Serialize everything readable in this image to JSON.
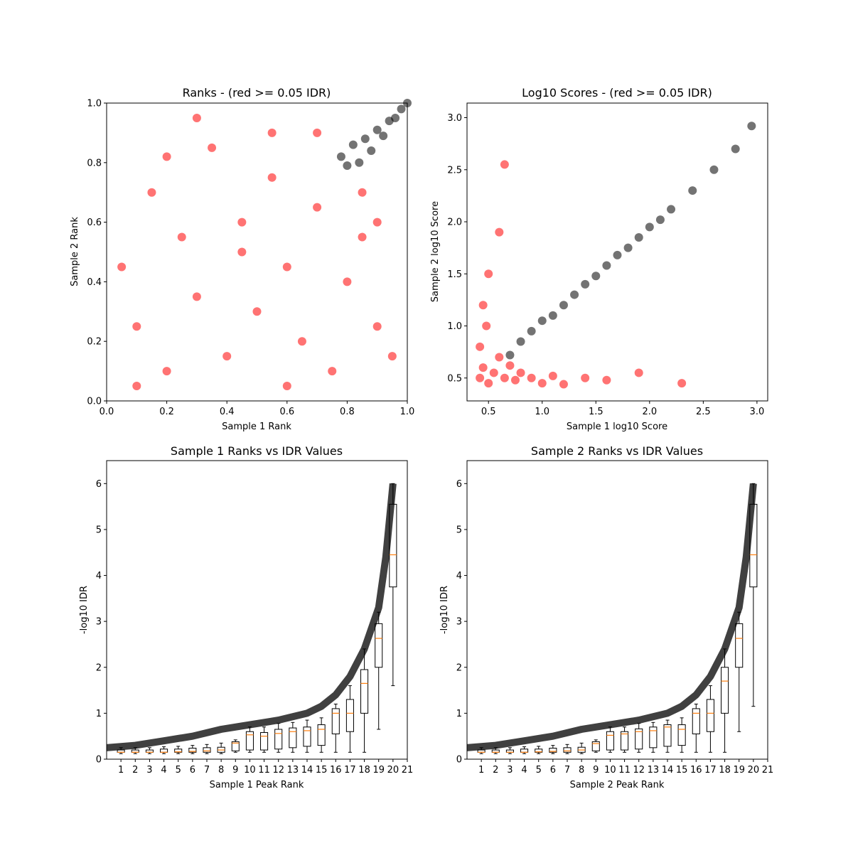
{
  "figure": {
    "colors": {
      "significant": "#000000",
      "not_significant": "#ff0000",
      "median": "#ff7f0e",
      "box": "#000000"
    }
  },
  "chart_data": [
    {
      "type": "scatter",
      "title": "Ranks - (red >= 0.05 IDR)",
      "xlabel": "Sample 1 Rank",
      "ylabel": "Sample 2 Rank",
      "xlim": [
        0,
        1
      ],
      "ylim": [
        0,
        1
      ],
      "xticks": [
        "0.0",
        "0.2",
        "0.4",
        "0.6",
        "0.8",
        "1.0"
      ],
      "yticks": [
        "0.0",
        "0.2",
        "0.4",
        "0.6",
        "0.8",
        "1.0"
      ],
      "series": [
        {
          "color": "#ff0000",
          "x": [
            0.05,
            0.1,
            0.15,
            0.2,
            0.25,
            0.3,
            0.35,
            0.4,
            0.45,
            0.5,
            0.55,
            0.6,
            0.65,
            0.7,
            0.75,
            0.8,
            0.85,
            0.9,
            0.95,
            0.1,
            0.3,
            0.55,
            0.7,
            0.9,
            0.2,
            0.45,
            0.6,
            0.85
          ],
          "y": [
            0.45,
            0.25,
            0.7,
            0.1,
            0.55,
            0.35,
            0.85,
            0.15,
            0.6,
            0.3,
            0.9,
            0.45,
            0.2,
            0.65,
            0.1,
            0.4,
            0.55,
            0.25,
            0.15,
            0.05,
            0.95,
            0.75,
            0.9,
            0.6,
            0.82,
            0.5,
            0.05,
            0.7
          ]
        },
        {
          "color": "#000000",
          "x": [
            0.78,
            0.8,
            0.82,
            0.84,
            0.86,
            0.88,
            0.9,
            0.92,
            0.94,
            0.96,
            0.98,
            1.0
          ],
          "y": [
            0.82,
            0.79,
            0.86,
            0.8,
            0.88,
            0.84,
            0.91,
            0.89,
            0.94,
            0.95,
            0.98,
            1.0
          ]
        }
      ]
    },
    {
      "type": "scatter",
      "title": "Log10 Scores - (red >= 0.05 IDR)",
      "xlabel": "Sample 1 log10 Score",
      "ylabel": "Sample 2 log10 Score",
      "xlim": [
        0.3,
        3.1
      ],
      "ylim": [
        0.28,
        3.14
      ],
      "xticks": [
        "0.5",
        "1.0",
        "1.5",
        "2.0",
        "2.5",
        "3.0"
      ],
      "yticks": [
        "0.5",
        "1.0",
        "1.5",
        "2.0",
        "2.5",
        "3.0"
      ],
      "series": [
        {
          "color": "#ff0000",
          "x": [
            0.42,
            0.45,
            0.5,
            0.55,
            0.6,
            0.65,
            0.7,
            0.75,
            0.8,
            0.9,
            1.0,
            1.1,
            1.2,
            1.4,
            1.6,
            1.9,
            2.3,
            0.45,
            0.5,
            0.6,
            0.65,
            0.42,
            0.48
          ],
          "y": [
            0.5,
            0.6,
            0.45,
            0.55,
            0.7,
            0.5,
            0.62,
            0.48,
            0.55,
            0.5,
            0.45,
            0.52,
            0.44,
            0.5,
            0.48,
            0.55,
            0.45,
            1.2,
            1.5,
            1.9,
            2.55,
            0.8,
            1.0
          ]
        },
        {
          "color": "#000000",
          "x": [
            0.7,
            0.8,
            0.9,
            1.0,
            1.1,
            1.2,
            1.3,
            1.4,
            1.5,
            1.6,
            1.7,
            1.8,
            1.9,
            2.0,
            2.1,
            2.2,
            2.4,
            2.6,
            2.8,
            2.95
          ],
          "y": [
            0.72,
            0.85,
            0.95,
            1.05,
            1.1,
            1.2,
            1.3,
            1.4,
            1.48,
            1.58,
            1.68,
            1.75,
            1.85,
            1.95,
            2.02,
            2.12,
            2.3,
            2.5,
            2.7,
            2.92
          ]
        }
      ]
    },
    {
      "type": "box",
      "title": "Sample 1 Ranks vs IDR Values",
      "xlabel": "Sample 1 Peak Rank",
      "ylabel": "-log10 IDR",
      "ylim": [
        0,
        6.5
      ],
      "xticks": [
        "1",
        "2",
        "3",
        "4",
        "5",
        "6",
        "7",
        "8",
        "9",
        "10",
        "11",
        "12",
        "13",
        "14",
        "15",
        "16",
        "17",
        "18",
        "19",
        "20",
        "21"
      ],
      "yticks": [
        "0",
        "1",
        "2",
        "3",
        "4",
        "5",
        "6"
      ],
      "medians": [
        0.15,
        0.15,
        0.15,
        0.15,
        0.16,
        0.17,
        0.18,
        0.2,
        0.35,
        0.53,
        0.5,
        0.56,
        0.6,
        0.62,
        0.65,
        1.0,
        1.0,
        1.65,
        2.63,
        4.45
      ],
      "box_q1": [
        0.15,
        0.15,
        0.15,
        0.15,
        0.15,
        0.15,
        0.15,
        0.15,
        0.18,
        0.2,
        0.2,
        0.22,
        0.25,
        0.28,
        0.3,
        0.55,
        0.6,
        1.0,
        2.0,
        3.75
      ],
      "box_q3": [
        0.2,
        0.2,
        0.2,
        0.22,
        0.22,
        0.24,
        0.25,
        0.26,
        0.38,
        0.6,
        0.58,
        0.65,
        0.68,
        0.7,
        0.75,
        1.1,
        1.3,
        1.95,
        2.95,
        5.55
      ],
      "whisker_low": [
        0.12,
        0.12,
        0.12,
        0.12,
        0.12,
        0.12,
        0.12,
        0.12,
        0.15,
        0.15,
        0.15,
        0.15,
        0.15,
        0.15,
        0.15,
        0.15,
        0.15,
        0.15,
        0.65,
        1.6
      ],
      "whisker_high": [
        0.25,
        0.25,
        0.25,
        0.27,
        0.28,
        0.3,
        0.32,
        0.35,
        0.42,
        0.7,
        0.7,
        0.78,
        0.8,
        0.85,
        0.9,
        1.2,
        1.6,
        2.4,
        3.2,
        6.0
      ],
      "curve": {
        "color": "#000000",
        "x": [
          0,
          2,
          4,
          6,
          8,
          10,
          12,
          14,
          15,
          16,
          17,
          18,
          19,
          19.5,
          20
        ],
        "y": [
          0.25,
          0.3,
          0.4,
          0.5,
          0.65,
          0.75,
          0.85,
          1.0,
          1.15,
          1.4,
          1.8,
          2.4,
          3.3,
          4.4,
          6.0
        ]
      }
    },
    {
      "type": "box",
      "title": "Sample 2 Ranks vs IDR Values",
      "xlabel": "Sample 2 Peak Rank",
      "ylabel": "-log10 IDR",
      "ylim": [
        0,
        6.5
      ],
      "xticks": [
        "1",
        "2",
        "3",
        "4",
        "5",
        "6",
        "7",
        "8",
        "9",
        "10",
        "11",
        "12",
        "13",
        "14",
        "15",
        "16",
        "17",
        "18",
        "19",
        "20",
        "21"
      ],
      "yticks": [
        "0",
        "1",
        "2",
        "3",
        "4",
        "5",
        "6"
      ],
      "medians": [
        0.15,
        0.15,
        0.15,
        0.15,
        0.16,
        0.17,
        0.18,
        0.2,
        0.34,
        0.52,
        0.55,
        0.6,
        0.62,
        0.7,
        0.65,
        1.0,
        1.0,
        1.7,
        2.63,
        4.45
      ],
      "box_q1": [
        0.15,
        0.15,
        0.15,
        0.15,
        0.15,
        0.15,
        0.15,
        0.15,
        0.18,
        0.2,
        0.2,
        0.22,
        0.25,
        0.28,
        0.3,
        0.55,
        0.6,
        1.0,
        2.0,
        3.75
      ],
      "box_q3": [
        0.2,
        0.2,
        0.2,
        0.22,
        0.22,
        0.24,
        0.25,
        0.26,
        0.38,
        0.6,
        0.6,
        0.66,
        0.7,
        0.75,
        0.75,
        1.1,
        1.3,
        2.0,
        2.95,
        5.55
      ],
      "whisker_low": [
        0.12,
        0.12,
        0.12,
        0.12,
        0.12,
        0.12,
        0.12,
        0.12,
        0.15,
        0.15,
        0.15,
        0.15,
        0.15,
        0.15,
        0.15,
        0.15,
        0.15,
        0.15,
        0.6,
        1.15
      ],
      "whisker_high": [
        0.25,
        0.25,
        0.25,
        0.27,
        0.28,
        0.3,
        0.32,
        0.35,
        0.42,
        0.7,
        0.7,
        0.78,
        0.8,
        0.85,
        0.9,
        1.2,
        1.6,
        2.4,
        3.2,
        6.0
      ],
      "curve": {
        "color": "#000000",
        "x": [
          0,
          2,
          4,
          6,
          8,
          10,
          12,
          14,
          15,
          16,
          17,
          18,
          19,
          19.5,
          20
        ],
        "y": [
          0.25,
          0.3,
          0.4,
          0.5,
          0.65,
          0.75,
          0.85,
          1.0,
          1.15,
          1.4,
          1.8,
          2.4,
          3.3,
          4.4,
          6.0
        ]
      }
    }
  ]
}
